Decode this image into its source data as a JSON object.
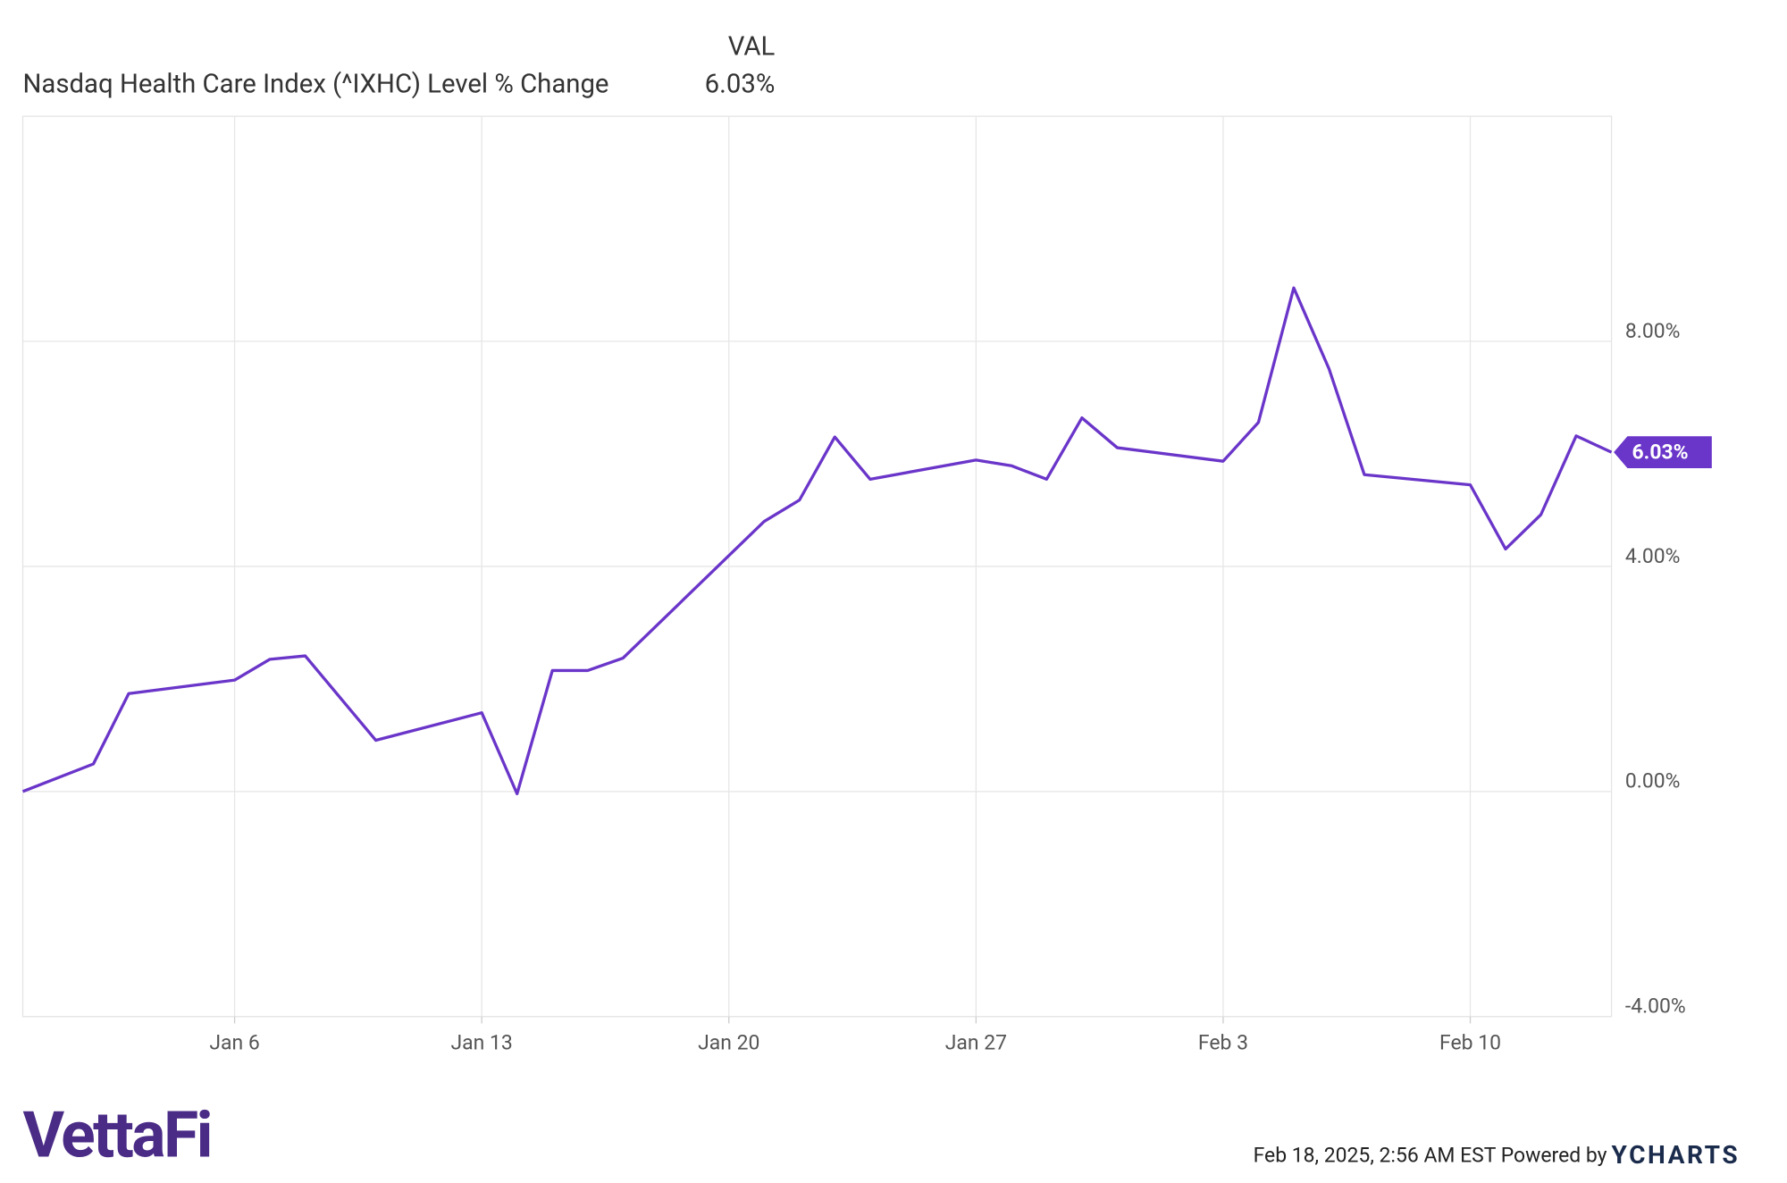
{
  "chart_data": {
    "type": "line",
    "legend_header": "VAL",
    "x": [
      0,
      2,
      3,
      6,
      7,
      8,
      10,
      13,
      14,
      15,
      16,
      17,
      21,
      22,
      23,
      24,
      27,
      28,
      29,
      30,
      31,
      34,
      35,
      36,
      37,
      38,
      41,
      42,
      43,
      44,
      45
    ],
    "series": [
      {
        "name": "Nasdaq Health Care Index (^IXHC) Level % Change",
        "color": "#6a35c9",
        "values": [
          0,
          0.49,
          1.74,
          1.98,
          2.35,
          2.41,
          0.91,
          1.4,
          -0.04,
          2.15,
          2.15,
          2.37,
          4.8,
          5.18,
          6.3,
          5.55,
          5.89,
          5.79,
          5.55,
          6.64,
          6.11,
          5.87,
          6.56,
          8.95,
          7.51,
          5.63,
          5.45,
          4.31,
          4.92,
          6.32,
          6.03
        ],
        "value_labels": [
          null,
          null,
          null,
          null,
          null,
          null,
          null,
          null,
          null,
          null,
          null,
          null,
          null,
          null,
          null,
          null,
          null,
          null,
          null,
          null,
          null,
          null,
          null,
          null,
          null,
          null,
          null,
          null,
          null,
          null,
          "6.03%"
        ]
      }
    ],
    "xlim": [
      0,
      45
    ],
    "xticks": [
      {
        "value": 6,
        "label": "Jan 6"
      },
      {
        "value": 13,
        "label": "Jan 13"
      },
      {
        "value": 20,
        "label": "Jan 20"
      },
      {
        "value": 27,
        "label": "Jan 27"
      },
      {
        "value": 34,
        "label": "Feb 3"
      },
      {
        "value": 41,
        "label": "Feb 10"
      }
    ],
    "ylim": [
      -4,
      12
    ],
    "yticks": [
      {
        "value": -4,
        "label": "-4.00%"
      },
      {
        "value": 0,
        "label": "0.00%"
      },
      {
        "value": 4,
        "label": "4.00%"
      },
      {
        "value": 8,
        "label": "8.00%"
      }
    ],
    "grid": true
  },
  "footer": {
    "logo": "VettaFi",
    "timestamp": "Feb 18, 2025, 2:56 AM EST Powered by",
    "brand": "YCHARTS"
  }
}
